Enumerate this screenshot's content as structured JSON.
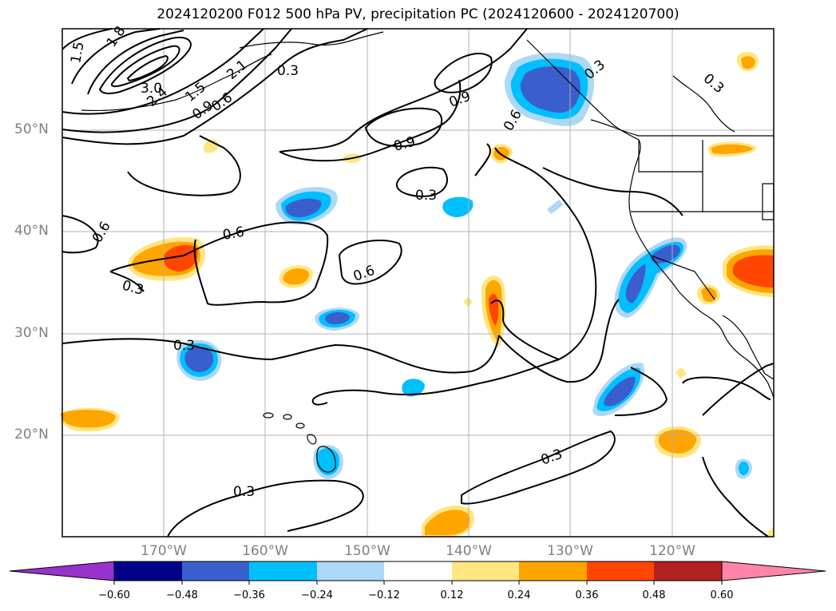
{
  "title": "2024120200 F012 500 hPa PV, precipitation PC (2024120600 - 2024120700)",
  "map": {
    "lat_labels": [
      "50°N",
      "40°N",
      "30°N",
      "20°N"
    ],
    "lon_labels": [
      "170°W",
      "160°W",
      "150°W",
      "140°W",
      "130°W",
      "120°W"
    ],
    "gridlines": true,
    "pv_contour_labels": [
      "1.8",
      "1.5",
      "3.0",
      "2.4",
      "2.1",
      "1.5",
      "0.9",
      "0.6",
      "0.3",
      "0.9",
      "0.9",
      "0.6",
      "0.3",
      "0.3",
      "0.6",
      "0.6",
      "0.3",
      "0.6",
      "0.3",
      "0.3",
      "0.3",
      "0.3"
    ]
  },
  "colorbar": {
    "tick_labels": [
      "−0.60",
      "−0.48",
      "−0.36",
      "−0.24",
      "−0.12",
      "0.12",
      "0.24",
      "0.36",
      "0.48",
      "0.60"
    ],
    "colors": [
      "#9932cc",
      "#00008b",
      "#3a5fcd",
      "#00bfff",
      "#add8f6",
      "#ffffff",
      "#ffe680",
      "#ffa500",
      "#ff4500",
      "#b22222",
      "#ff85a8"
    ],
    "extend": "both"
  },
  "shading_colors": {
    "light_blue": "#add8f6",
    "blue": "#00bfff",
    "dark_blue": "#3a5fcd",
    "light_yellow": "#ffe680",
    "orange": "#ffa500",
    "red_orange": "#ff4500"
  }
}
